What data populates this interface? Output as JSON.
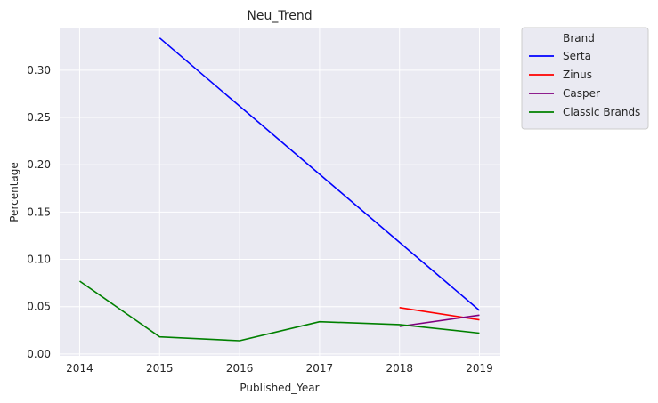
{
  "chart_data": {
    "type": "line",
    "title": "Neu_Trend",
    "xlabel": "Published_Year",
    "ylabel": "Percentage",
    "x_ticks": [
      "2014",
      "2015",
      "2016",
      "2017",
      "2018",
      "2019"
    ],
    "y_ticks": [
      "0.00",
      "0.05",
      "0.10",
      "0.15",
      "0.20",
      "0.25",
      "0.30"
    ],
    "xlim": [
      2013.75,
      2019.25
    ],
    "ylim": [
      -0.002,
      0.345
    ],
    "grid": true,
    "legend": {
      "title": "Brand",
      "placement": "outside-top-right"
    },
    "series": [
      {
        "name": "Serta",
        "color": "#0000ff",
        "x": [
          2015,
          2019
        ],
        "y": [
          0.334,
          0.046
        ]
      },
      {
        "name": "Zinus",
        "color": "#ff0000",
        "x": [
          2018,
          2019
        ],
        "y": [
          0.049,
          0.036
        ]
      },
      {
        "name": "Casper",
        "color": "#800080",
        "x": [
          2018,
          2019
        ],
        "y": [
          0.029,
          0.041
        ]
      },
      {
        "name": "Classic Brands",
        "color": "#008000",
        "x": [
          2014,
          2015,
          2016,
          2017,
          2018,
          2019
        ],
        "y": [
          0.077,
          0.018,
          0.014,
          0.034,
          0.031,
          0.022
        ]
      }
    ]
  }
}
